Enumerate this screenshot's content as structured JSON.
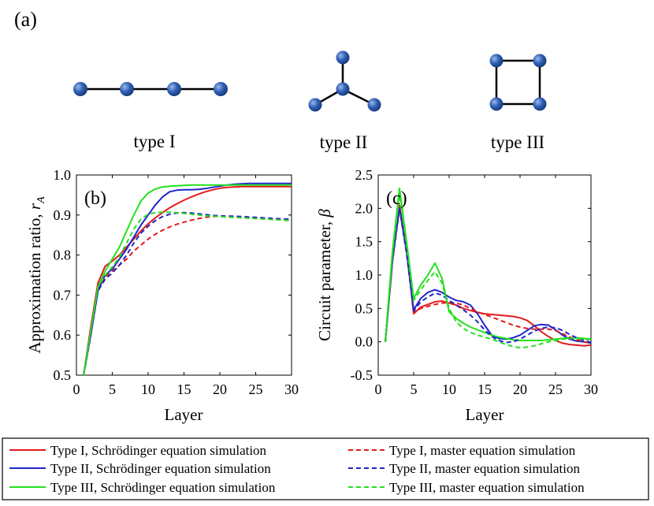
{
  "panel_a": {
    "label": "(a)",
    "graphs": [
      {
        "name": "type I",
        "label": "type I"
      },
      {
        "name": "type II",
        "label": "type II"
      },
      {
        "name": "type III",
        "label": "type III"
      }
    ]
  },
  "colors": {
    "node": "#2f5fb3",
    "edge": "#000000",
    "type_I": "#e31a1c",
    "type_II": "#1f26c9",
    "type_III": "#22e01e"
  },
  "chart_data": [
    {
      "panel": "(b)",
      "type": "line",
      "xlabel": "Layer",
      "ylabel": "Approximation ratio, ",
      "ylabel_symbol": "r",
      "ylabel_subscript": "A",
      "xlim": [
        0,
        30
      ],
      "ylim": [
        0.5,
        1.0
      ],
      "xticks": [
        "0",
        "5",
        "10",
        "15",
        "20",
        "25",
        "30"
      ],
      "yticks": [
        "0.5",
        "0.6",
        "0.7",
        "0.8",
        "0.9",
        "1.0"
      ],
      "x": [
        1,
        2,
        3,
        4,
        5,
        6,
        7,
        8,
        9,
        10,
        11,
        12,
        13,
        14,
        15,
        16,
        17,
        18,
        19,
        20,
        21,
        22,
        23,
        24,
        25,
        26,
        27,
        28,
        29,
        30
      ],
      "series": [
        {
          "name": "Type I, Schrödinger equation simulation",
          "color_key": "type_I",
          "dash": false,
          "values": [
            0.5,
            0.62,
            0.73,
            0.772,
            0.785,
            0.8,
            0.82,
            0.84,
            0.86,
            0.878,
            0.893,
            0.906,
            0.918,
            0.928,
            0.937,
            0.945,
            0.952,
            0.958,
            0.963,
            0.967,
            0.969,
            0.97,
            0.971,
            0.971,
            0.971,
            0.971,
            0.971,
            0.971,
            0.971,
            0.971
          ]
        },
        {
          "name": "Type II, Schrödinger equation simulation",
          "color_key": "type_II",
          "dash": false,
          "values": [
            0.5,
            0.6,
            0.71,
            0.75,
            0.765,
            0.79,
            0.815,
            0.845,
            0.875,
            0.9,
            0.925,
            0.945,
            0.958,
            0.962,
            0.963,
            0.963,
            0.964,
            0.966,
            0.969,
            0.972,
            0.975,
            0.977,
            0.978,
            0.979,
            0.979,
            0.979,
            0.979,
            0.979,
            0.979,
            0.979
          ]
        },
        {
          "name": "Type III, Schrödinger equation simulation",
          "color_key": "type_III",
          "dash": false,
          "values": [
            0.5,
            0.61,
            0.72,
            0.76,
            0.79,
            0.82,
            0.86,
            0.9,
            0.935,
            0.955,
            0.965,
            0.97,
            0.972,
            0.973,
            0.974,
            0.975,
            0.975,
            0.975,
            0.975,
            0.975,
            0.975,
            0.975,
            0.975,
            0.975,
            0.975,
            0.975,
            0.975,
            0.975,
            0.975,
            0.975
          ]
        },
        {
          "name": "Type I, master equation simulation",
          "color_key": "type_I",
          "dash": true,
          "values": [
            0.5,
            0.61,
            0.72,
            0.745,
            0.76,
            0.775,
            0.79,
            0.81,
            0.825,
            0.84,
            0.852,
            0.862,
            0.87,
            0.877,
            0.882,
            0.887,
            0.891,
            0.894,
            0.896,
            0.897,
            0.897,
            0.896,
            0.895,
            0.894,
            0.893,
            0.892,
            0.891,
            0.889,
            0.887,
            0.886
          ]
        },
        {
          "name": "Type II, master equation simulation",
          "color_key": "type_II",
          "dash": true,
          "values": [
            0.5,
            0.6,
            0.71,
            0.74,
            0.755,
            0.775,
            0.8,
            0.83,
            0.855,
            0.872,
            0.886,
            0.896,
            0.902,
            0.905,
            0.906,
            0.905,
            0.903,
            0.901,
            0.899,
            0.898,
            0.897,
            0.897,
            0.896,
            0.895,
            0.894,
            0.893,
            0.892,
            0.891,
            0.89,
            0.89
          ]
        },
        {
          "name": "Type III, master equation simulation",
          "color_key": "type_III",
          "dash": true,
          "values": [
            0.5,
            0.61,
            0.72,
            0.75,
            0.77,
            0.795,
            0.83,
            0.865,
            0.89,
            0.902,
            0.906,
            0.907,
            0.907,
            0.906,
            0.904,
            0.902,
            0.9,
            0.898,
            0.897,
            0.896,
            0.895,
            0.894,
            0.893,
            0.892,
            0.891,
            0.89,
            0.889,
            0.888,
            0.887,
            0.886
          ]
        }
      ]
    },
    {
      "panel": "(c)",
      "type": "line",
      "xlabel": "Layer",
      "ylabel": "Circuit parameter, ",
      "ylabel_symbol": "β",
      "xlim": [
        0,
        30
      ],
      "ylim": [
        -0.5,
        2.5
      ],
      "xticks": [
        "0",
        "5",
        "10",
        "15",
        "20",
        "25",
        "30"
      ],
      "yticks": [
        "-0.5",
        "0.0",
        "0.5",
        "1.0",
        "1.5",
        "2.0",
        "2.5"
      ],
      "x": [
        1,
        2,
        3,
        4,
        5,
        6,
        7,
        8,
        9,
        10,
        11,
        12,
        13,
        14,
        15,
        16,
        17,
        18,
        19,
        20,
        21,
        22,
        23,
        24,
        25,
        26,
        27,
        28,
        29,
        30
      ],
      "series": [
        {
          "name": "Type I, Schrödinger equation simulation",
          "color_key": "type_I",
          "dash": false,
          "values": [
            0.0,
            1.2,
            2.05,
            1.4,
            0.42,
            0.52,
            0.56,
            0.6,
            0.61,
            0.58,
            0.55,
            0.5,
            0.47,
            0.44,
            0.42,
            0.41,
            0.4,
            0.39,
            0.38,
            0.36,
            0.32,
            0.24,
            0.15,
            0.08,
            0.02,
            -0.02,
            -0.04,
            -0.05,
            -0.06,
            -0.05
          ]
        },
        {
          "name": "Type II, Schrödinger equation simulation",
          "color_key": "type_II",
          "dash": false,
          "values": [
            0.0,
            1.25,
            2.0,
            1.35,
            0.48,
            0.65,
            0.74,
            0.78,
            0.74,
            0.67,
            0.62,
            0.6,
            0.55,
            0.42,
            0.25,
            0.1,
            0.05,
            0.04,
            0.06,
            0.1,
            0.17,
            0.24,
            0.26,
            0.25,
            0.18,
            0.1,
            0.04,
            0.01,
            0.0,
            -0.02
          ]
        },
        {
          "name": "Type III, Schrödinger equation simulation",
          "color_key": "type_III",
          "dash": false,
          "values": [
            0.0,
            1.35,
            2.3,
            1.5,
            0.65,
            0.85,
            1.0,
            1.18,
            0.95,
            0.45,
            0.35,
            0.28,
            0.22,
            0.18,
            0.14,
            0.1,
            0.07,
            0.05,
            0.03,
            0.02,
            0.02,
            0.02,
            0.02,
            0.03,
            0.04,
            0.05,
            0.06,
            0.06,
            0.05,
            0.04
          ]
        },
        {
          "name": "Type I, master equation simulation",
          "color_key": "type_I",
          "dash": true,
          "values": [
            0.0,
            1.2,
            2.0,
            1.35,
            0.45,
            0.5,
            0.53,
            0.56,
            0.58,
            0.59,
            0.58,
            0.55,
            0.5,
            0.45,
            0.41,
            0.37,
            0.33,
            0.29,
            0.25,
            0.22,
            0.2,
            0.19,
            0.19,
            0.19,
            0.17,
            0.12,
            0.07,
            0.03,
            0.0,
            -0.02
          ]
        },
        {
          "name": "Type II, master equation simulation",
          "color_key": "type_II",
          "dash": true,
          "values": [
            0.0,
            1.2,
            2.0,
            1.32,
            0.46,
            0.6,
            0.67,
            0.73,
            0.7,
            0.62,
            0.55,
            0.48,
            0.4,
            0.3,
            0.18,
            0.08,
            0.02,
            -0.01,
            0.0,
            0.04,
            0.1,
            0.16,
            0.2,
            0.22,
            0.21,
            0.17,
            0.11,
            0.06,
            0.02,
            -0.01
          ]
        },
        {
          "name": "Type III, master equation simulation",
          "color_key": "type_III",
          "dash": true,
          "values": [
            0.0,
            1.3,
            2.2,
            1.45,
            0.62,
            0.78,
            0.92,
            1.05,
            0.88,
            0.5,
            0.3,
            0.2,
            0.14,
            0.1,
            0.07,
            0.04,
            0.0,
            -0.04,
            -0.07,
            -0.09,
            -0.08,
            -0.06,
            -0.03,
            0.0,
            0.02,
            0.04,
            0.05,
            0.05,
            0.04,
            0.03
          ]
        }
      ]
    }
  ],
  "legend": {
    "entries": [
      {
        "label": "Type I, Schrödinger equation simulation",
        "color_key": "type_I",
        "dash": false
      },
      {
        "label": "Type I, master equation simulation",
        "color_key": "type_I",
        "dash": true
      },
      {
        "label": "Type II, Schrödinger equation simulation",
        "color_key": "type_II",
        "dash": false
      },
      {
        "label": "Type II, master equation simulation",
        "color_key": "type_II",
        "dash": true
      },
      {
        "label": "Type III, Schrödinger equation simulation",
        "color_key": "type_III",
        "dash": false
      },
      {
        "label": "Type III, master equation simulation",
        "color_key": "type_III",
        "dash": true
      }
    ]
  }
}
